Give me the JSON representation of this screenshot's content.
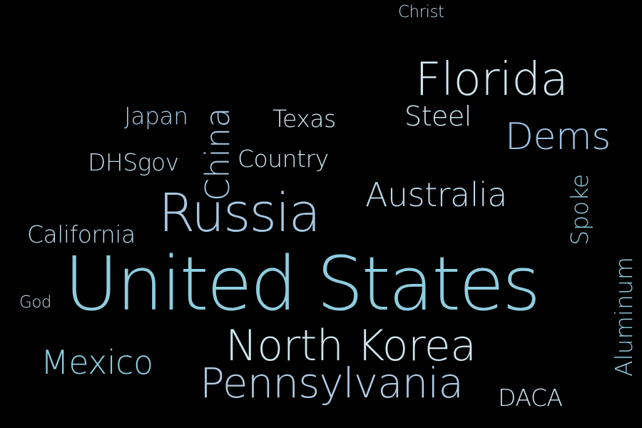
{
  "background": "#000000",
  "words": {
    "united_states": "United States",
    "florida": "Florida",
    "russia": "Russia",
    "north_korea": "North Korea",
    "pennsylvania": "Pennsylvania",
    "dems": "Dems",
    "australia": "Australia",
    "china": "China",
    "mexico": "Mexico",
    "steel": "Steel",
    "texas": "Texas",
    "japan": "Japan",
    "country": "Country",
    "dhsgov": "DHSgov",
    "california": "California",
    "spoke": "Spoke",
    "aluminum": "Aluminum",
    "daca": "DACA",
    "god": "God",
    "christ": "Christ"
  },
  "palette": {
    "light": "#cfe6ef",
    "pale": "#bcd9ea",
    "mid": "#a6c8e3",
    "sky": "#8ecde0",
    "blue": "#9dc4e6",
    "steel": "#b1cbe4"
  }
}
